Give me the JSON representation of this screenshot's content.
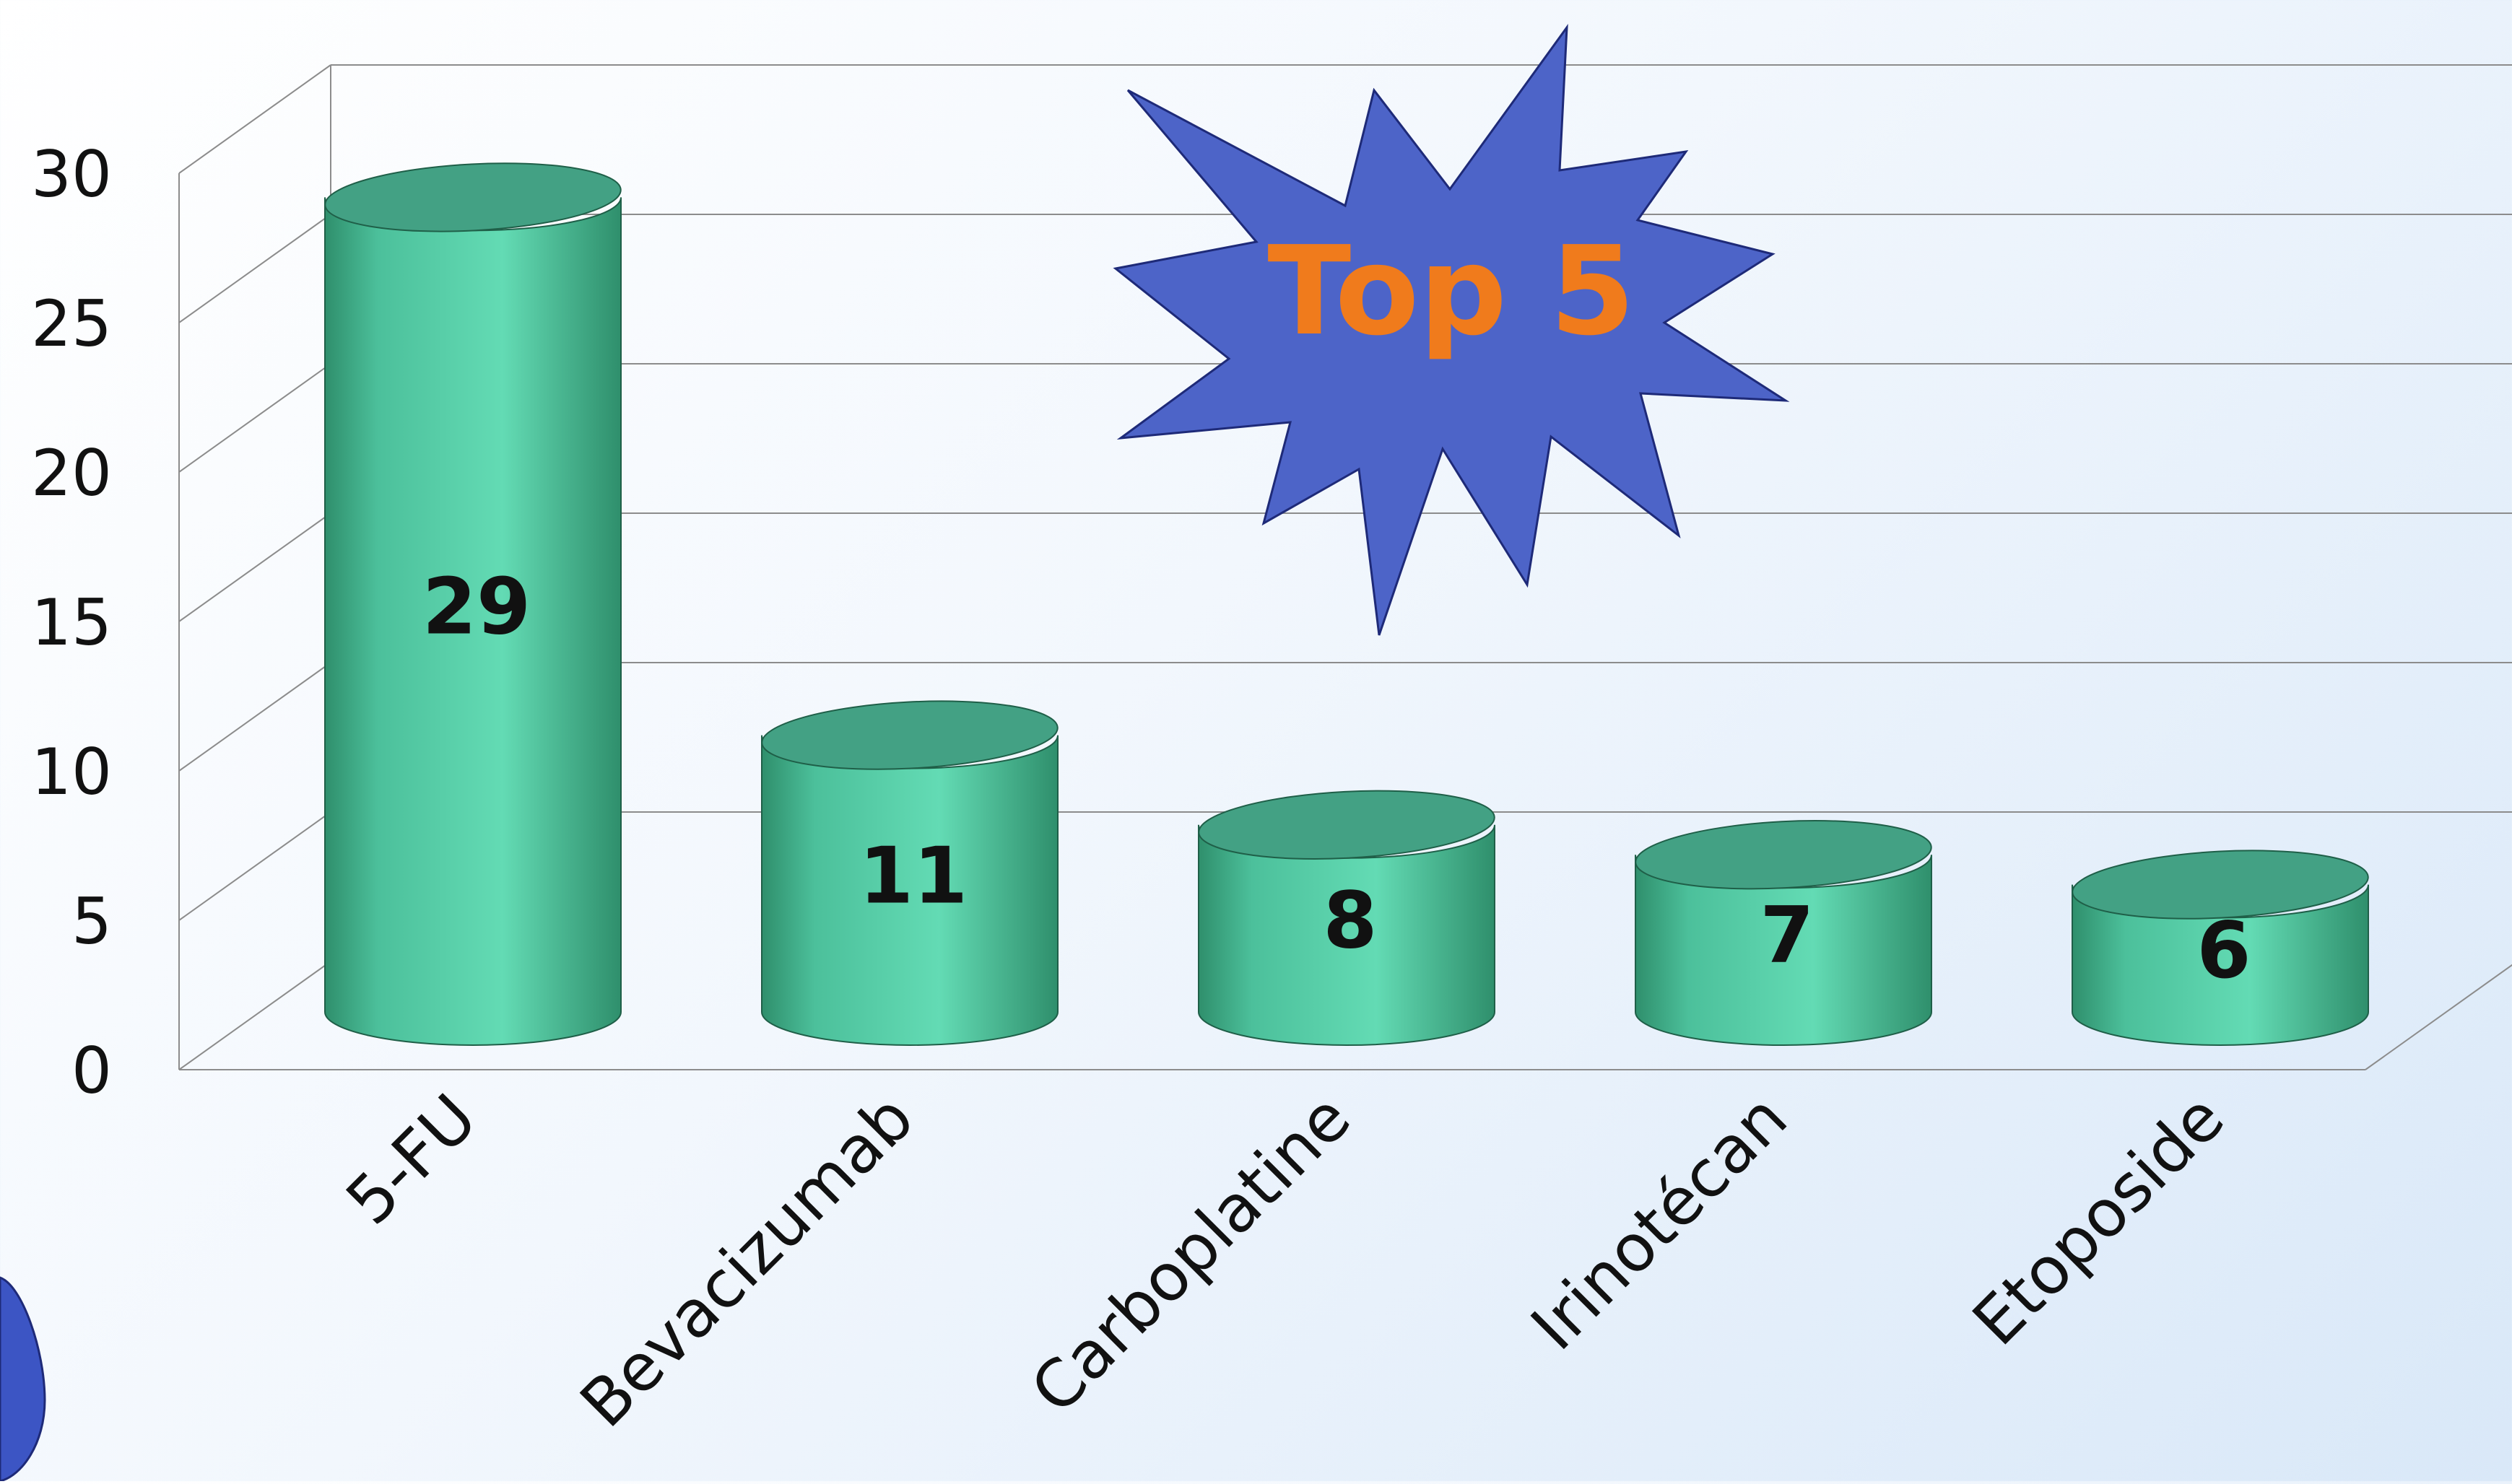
{
  "chart_data": {
    "type": "bar",
    "style": "3d-cylinder",
    "categories": [
      "5-FU",
      "Bevacizumab",
      "Carboplatine",
      "Irinotécan",
      "Etoposide"
    ],
    "values": [
      29,
      11,
      8,
      7,
      6
    ],
    "data_labels": [
      "29",
      "11",
      "8",
      "7",
      "6"
    ],
    "ylim": [
      0,
      30
    ],
    "yticks": [
      "0",
      "5",
      "10",
      "15",
      "20",
      "25",
      "30"
    ],
    "grid": true,
    "legend": "none"
  },
  "annotation": {
    "text": "Top 5",
    "text_color": "#f07b1c",
    "fill_color": "#4d64c8"
  },
  "colors": {
    "bar_light": "#63dbb4",
    "bar_dark": "#2f8f6c",
    "bar_top": "#43a184",
    "grid": "#8c8c8c",
    "accent_circle": "#3c55c4"
  }
}
